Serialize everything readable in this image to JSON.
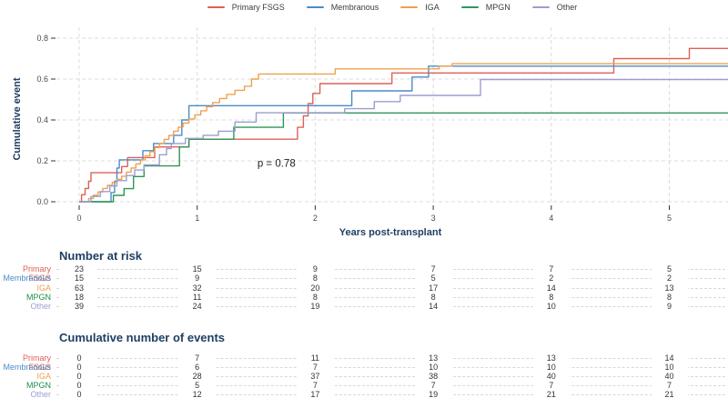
{
  "legend": {
    "items": [
      {
        "label": "Primary FSGS",
        "color": "#de6056"
      },
      {
        "label": "Membranous",
        "color": "#4a8bc7"
      },
      {
        "label": "IGA",
        "color": "#f0a04f"
      },
      {
        "label": "MPGN",
        "color": "#2d9656"
      },
      {
        "label": "Other",
        "color": "#9c9dd1"
      }
    ]
  },
  "chart_data": {
    "type": "line",
    "subtype": "kaplan-meier-step",
    "title": "",
    "xlabel": "Years post-transplant",
    "ylabel": "Cumulative event",
    "xlim": [
      -0.19,
      5.5
    ],
    "ylim": [
      0,
      0.85
    ],
    "xticks": [
      0,
      1,
      2,
      3,
      4,
      5
    ],
    "yticks": [
      0.0,
      0.2,
      0.4,
      0.6,
      0.8
    ],
    "grid": "dashed",
    "legend_position": "top",
    "annotation": {
      "text": "p = 0.78",
      "x": 1.51,
      "y": 0.19
    },
    "series": [
      {
        "name": "Primary FSGS",
        "color": "#de6056",
        "points": [
          [
            0,
            0
          ],
          [
            0.02,
            0.034
          ],
          [
            0.05,
            0.065
          ],
          [
            0.08,
            0.1
          ],
          [
            0.1,
            0.142
          ],
          [
            0.36,
            0.172
          ],
          [
            0.41,
            0.216
          ],
          [
            0.64,
            0.268
          ],
          [
            0.93,
            0.306
          ],
          [
            1.85,
            0.364
          ],
          [
            1.9,
            0.42
          ],
          [
            1.94,
            0.48
          ],
          [
            1.98,
            0.53
          ],
          [
            2.04,
            0.578
          ],
          [
            2.65,
            0.63
          ],
          [
            4.53,
            0.7
          ],
          [
            5.17,
            0.75
          ],
          [
            5.5,
            0.75
          ]
        ]
      },
      {
        "name": "Membranous",
        "color": "#4a8bc7",
        "points": [
          [
            0,
            0
          ],
          [
            0.27,
            0.045
          ],
          [
            0.3,
            0.1
          ],
          [
            0.32,
            0.165
          ],
          [
            0.34,
            0.205
          ],
          [
            0.54,
            0.25
          ],
          [
            0.63,
            0.285
          ],
          [
            0.8,
            0.325
          ],
          [
            0.87,
            0.4
          ],
          [
            0.93,
            0.47
          ],
          [
            2.31,
            0.542
          ],
          [
            2.82,
            0.61
          ],
          [
            2.96,
            0.663
          ],
          [
            5.5,
            0.663
          ]
        ]
      },
      {
        "name": "IGA",
        "color": "#f0a04f",
        "points": [
          [
            0,
            0
          ],
          [
            0.08,
            0.016
          ],
          [
            0.12,
            0.032
          ],
          [
            0.16,
            0.048
          ],
          [
            0.2,
            0.065
          ],
          [
            0.24,
            0.08
          ],
          [
            0.28,
            0.095
          ],
          [
            0.32,
            0.11
          ],
          [
            0.36,
            0.125
          ],
          [
            0.4,
            0.145
          ],
          [
            0.44,
            0.165
          ],
          [
            0.48,
            0.185
          ],
          [
            0.52,
            0.205
          ],
          [
            0.56,
            0.225
          ],
          [
            0.6,
            0.245
          ],
          [
            0.64,
            0.265
          ],
          [
            0.68,
            0.285
          ],
          [
            0.72,
            0.305
          ],
          [
            0.76,
            0.325
          ],
          [
            0.8,
            0.345
          ],
          [
            0.84,
            0.365
          ],
          [
            0.88,
            0.385
          ],
          [
            0.93,
            0.405
          ],
          [
            0.98,
            0.425
          ],
          [
            1.03,
            0.445
          ],
          [
            1.08,
            0.465
          ],
          [
            1.13,
            0.485
          ],
          [
            1.19,
            0.505
          ],
          [
            1.25,
            0.525
          ],
          [
            1.32,
            0.545
          ],
          [
            1.4,
            0.565
          ],
          [
            1.46,
            0.6
          ],
          [
            1.52,
            0.625
          ],
          [
            2.17,
            0.65
          ],
          [
            3.05,
            0.663
          ],
          [
            3.16,
            0.675
          ],
          [
            5.5,
            0.675
          ]
        ]
      },
      {
        "name": "MPGN",
        "color": "#2d9656",
        "points": [
          [
            0,
            0
          ],
          [
            0.29,
            0.031
          ],
          [
            0.38,
            0.064
          ],
          [
            0.46,
            0.123
          ],
          [
            0.55,
            0.175
          ],
          [
            0.85,
            0.268
          ],
          [
            0.93,
            0.306
          ],
          [
            1.31,
            0.364
          ],
          [
            1.73,
            0.434
          ],
          [
            5.5,
            0.434
          ]
        ]
      },
      {
        "name": "Other",
        "color": "#9c9dd1",
        "points": [
          [
            0,
            0
          ],
          [
            0.1,
            0.026
          ],
          [
            0.18,
            0.05
          ],
          [
            0.26,
            0.077
          ],
          [
            0.32,
            0.103
          ],
          [
            0.4,
            0.128
          ],
          [
            0.47,
            0.155
          ],
          [
            0.55,
            0.18
          ],
          [
            0.68,
            0.23
          ],
          [
            0.74,
            0.26
          ],
          [
            0.78,
            0.285
          ],
          [
            0.9,
            0.31
          ],
          [
            1.05,
            0.325
          ],
          [
            1.18,
            0.345
          ],
          [
            1.32,
            0.39
          ],
          [
            1.5,
            0.435
          ],
          [
            2.25,
            0.455
          ],
          [
            2.5,
            0.49
          ],
          [
            2.72,
            0.52
          ],
          [
            3.4,
            0.598
          ],
          [
            5.5,
            0.598
          ]
        ]
      }
    ]
  },
  "risk_table": {
    "title": "Number at risk",
    "time_columns": [
      0,
      1,
      2,
      3,
      4,
      5
    ],
    "rows": [
      {
        "label": "Primary FSGS",
        "color": "#de6056",
        "values": [
          23,
          15,
          9,
          7,
          7,
          5
        ]
      },
      {
        "label": "Membranous",
        "color": "#4a8bc7",
        "values": [
          15,
          9,
          8,
          5,
          2,
          2
        ]
      },
      {
        "label": "IGA",
        "color": "#f0a04f",
        "values": [
          63,
          32,
          20,
          17,
          14,
          13
        ]
      },
      {
        "label": "MPGN",
        "color": "#1e8e4d",
        "values": [
          18,
          11,
          8,
          8,
          8,
          8
        ]
      },
      {
        "label": "Other",
        "color": "#9c9dd1",
        "values": [
          39,
          24,
          19,
          14,
          10,
          9
        ]
      }
    ]
  },
  "events_table": {
    "title": "Cumulative number of events",
    "time_columns": [
      0,
      1,
      2,
      3,
      4,
      5
    ],
    "rows": [
      {
        "label": "Primary FSGS",
        "color": "#de6056",
        "values": [
          0,
          7,
          11,
          13,
          13,
          14
        ]
      },
      {
        "label": "Membranous",
        "color": "#4a8bc7",
        "values": [
          0,
          6,
          7,
          10,
          10,
          10
        ]
      },
      {
        "label": "IGA",
        "color": "#f0a04f",
        "values": [
          0,
          28,
          37,
          38,
          40,
          40
        ]
      },
      {
        "label": "MPGN",
        "color": "#1e8e4d",
        "values": [
          0,
          5,
          7,
          7,
          7,
          7
        ]
      },
      {
        "label": "Other",
        "color": "#9c9dd1",
        "values": [
          0,
          12,
          17,
          19,
          21,
          21
        ]
      }
    ]
  }
}
